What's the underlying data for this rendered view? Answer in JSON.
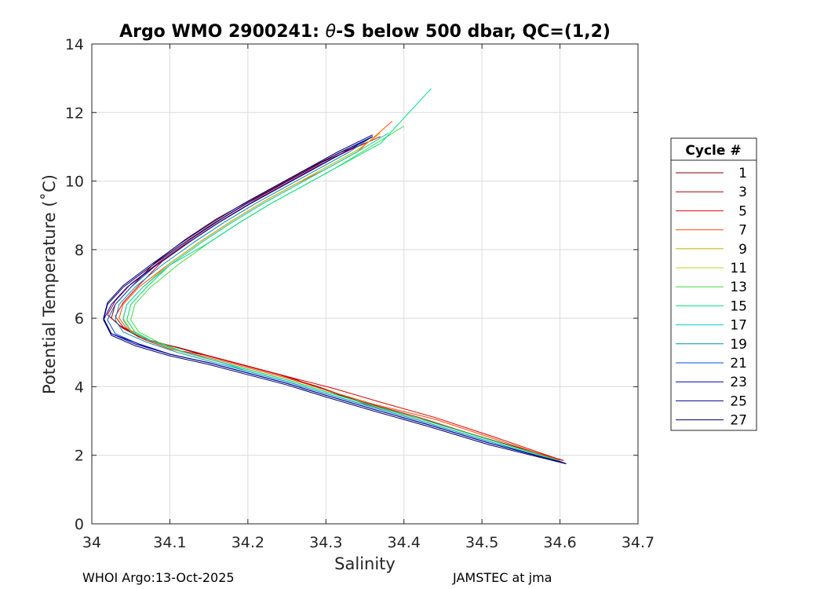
{
  "chart_data": {
    "type": "line",
    "title_prefix": "Argo WMO 2900241: ",
    "title_theta": "θ",
    "title_suffix": "-S below 500 dbar,  QC=(1,2)",
    "xlabel": "Salinity",
    "ylabel": "Potential Temperature (˚C)",
    "xlim": [
      34.0,
      34.7
    ],
    "ylim": [
      0,
      14
    ],
    "xticks": [
      "34",
      "34.1",
      "34.2",
      "34.3",
      "34.4",
      "34.5",
      "34.6",
      "34.7"
    ],
    "yticks": [
      "0",
      "2",
      "4",
      "6",
      "8",
      "10",
      "12",
      "14"
    ],
    "grid": true,
    "legend_title": "Cycle #",
    "legend_position": "right",
    "series": [
      {
        "name": "1",
        "color": "#800000",
        "x": [
          34.605,
          34.52,
          34.43,
          34.35,
          34.3,
          34.25,
          34.2,
          34.15,
          34.11,
          34.07,
          34.04,
          34.025,
          34.03,
          34.05,
          34.08,
          34.12,
          34.16,
          34.2,
          34.24,
          34.28,
          34.32,
          34.35
        ],
        "y": [
          1.85,
          2.4,
          3.0,
          3.5,
          3.9,
          4.3,
          4.6,
          4.9,
          5.15,
          5.35,
          5.7,
          6.0,
          6.4,
          6.9,
          7.6,
          8.3,
          8.9,
          9.4,
          9.9,
          10.4,
          10.85,
          11.1
        ]
      },
      {
        "name": "3",
        "color": "#b00000",
        "x": [
          34.6,
          34.51,
          34.42,
          34.34,
          34.29,
          34.24,
          34.19,
          34.14,
          34.1,
          34.06,
          34.035,
          34.02,
          34.03,
          34.05,
          34.09,
          34.13,
          34.17,
          34.21,
          34.25,
          34.29,
          34.33,
          34.36
        ],
        "y": [
          1.85,
          2.45,
          3.1,
          3.6,
          4.0,
          4.35,
          4.65,
          4.95,
          5.2,
          5.45,
          5.8,
          6.1,
          6.5,
          7.0,
          7.7,
          8.35,
          8.95,
          9.5,
          10.0,
          10.5,
          10.9,
          11.2
        ]
      },
      {
        "name": "5",
        "color": "#e00000",
        "x": [
          34.603,
          34.52,
          34.44,
          34.37,
          34.31,
          34.25,
          34.2,
          34.15,
          34.1,
          34.065,
          34.04,
          34.03,
          34.04,
          34.06,
          34.09,
          34.13,
          34.17,
          34.21,
          34.25,
          34.29,
          34.33,
          34.37
        ],
        "y": [
          1.85,
          2.5,
          3.1,
          3.55,
          3.95,
          4.3,
          4.6,
          4.9,
          5.1,
          5.4,
          5.75,
          6.05,
          6.45,
          6.95,
          7.65,
          8.3,
          8.9,
          9.45,
          9.95,
          10.45,
          10.9,
          11.3
        ]
      },
      {
        "name": "7",
        "color": "#ff5000",
        "x": [
          34.6,
          34.52,
          34.44,
          34.36,
          34.3,
          34.25,
          34.2,
          34.15,
          34.1,
          34.07,
          34.045,
          34.035,
          34.04,
          34.06,
          34.1,
          34.14,
          34.18,
          34.22,
          34.26,
          34.3,
          34.34,
          34.385
        ],
        "y": [
          1.85,
          2.45,
          3.05,
          3.5,
          3.9,
          4.25,
          4.55,
          4.85,
          5.1,
          5.35,
          5.7,
          6.0,
          6.4,
          6.9,
          7.6,
          8.25,
          8.85,
          9.4,
          9.9,
          10.35,
          10.85,
          11.75
        ]
      },
      {
        "name": "9",
        "color": "#d0b000",
        "x": [
          34.598,
          34.51,
          34.43,
          34.36,
          34.3,
          34.25,
          34.2,
          34.15,
          34.11,
          34.075,
          34.05,
          34.04,
          34.045,
          34.065,
          34.1,
          34.14,
          34.18,
          34.22,
          34.26,
          34.3,
          34.34,
          34.37
        ],
        "y": [
          1.85,
          2.45,
          3.0,
          3.45,
          3.85,
          4.2,
          4.5,
          4.8,
          5.05,
          5.35,
          5.65,
          6.0,
          6.4,
          6.9,
          7.6,
          8.25,
          8.85,
          9.4,
          9.9,
          10.4,
          10.9,
          11.4
        ]
      },
      {
        "name": "11",
        "color": "#b0e020",
        "x": [
          34.598,
          34.51,
          34.43,
          34.36,
          34.3,
          34.25,
          34.2,
          34.16,
          34.12,
          34.08,
          34.055,
          34.045,
          34.05,
          34.07,
          34.1,
          34.14,
          34.18,
          34.22,
          34.26,
          34.3,
          34.34,
          34.38
        ],
        "y": [
          1.85,
          2.45,
          3.0,
          3.45,
          3.85,
          4.2,
          4.5,
          4.75,
          5.0,
          5.3,
          5.6,
          5.95,
          6.4,
          6.9,
          7.55,
          8.2,
          8.8,
          9.35,
          9.85,
          10.35,
          10.85,
          11.4
        ]
      },
      {
        "name": "13",
        "color": "#40e040",
        "x": [
          34.598,
          34.51,
          34.43,
          34.36,
          34.3,
          34.25,
          34.2,
          34.16,
          34.12,
          34.085,
          34.06,
          34.05,
          34.055,
          34.075,
          34.11,
          34.15,
          34.19,
          34.23,
          34.27,
          34.31,
          34.35,
          34.4
        ],
        "y": [
          1.85,
          2.45,
          3.0,
          3.45,
          3.85,
          4.2,
          4.5,
          4.75,
          5.0,
          5.3,
          5.6,
          5.95,
          6.4,
          6.9,
          7.55,
          8.2,
          8.8,
          9.35,
          9.85,
          10.35,
          10.9,
          11.6
        ]
      },
      {
        "name": "15",
        "color": "#00e080",
        "x": [
          34.598,
          34.51,
          34.43,
          34.36,
          34.3,
          34.25,
          34.2,
          34.16,
          34.12,
          34.08,
          34.055,
          34.045,
          34.05,
          34.07,
          34.1,
          34.15,
          34.19,
          34.23,
          34.27,
          34.31,
          34.37,
          34.435
        ],
        "y": [
          1.85,
          2.45,
          3.0,
          3.45,
          3.85,
          4.2,
          4.5,
          4.75,
          5.0,
          5.3,
          5.6,
          5.95,
          6.4,
          6.9,
          7.55,
          8.2,
          8.8,
          9.35,
          9.85,
          10.35,
          11.1,
          12.7
        ]
      },
      {
        "name": "17",
        "color": "#00d0d0",
        "x": [
          34.6,
          34.51,
          34.43,
          34.36,
          34.3,
          34.25,
          34.2,
          34.16,
          34.12,
          34.08,
          34.05,
          34.04,
          34.045,
          34.065,
          34.1,
          34.14,
          34.18,
          34.22,
          34.26,
          34.3,
          34.34,
          34.38
        ],
        "y": [
          1.8,
          2.4,
          2.95,
          3.4,
          3.8,
          4.15,
          4.45,
          4.75,
          5.0,
          5.3,
          5.6,
          5.95,
          6.4,
          6.9,
          7.55,
          8.2,
          8.8,
          9.35,
          9.85,
          10.35,
          10.85,
          11.4
        ]
      },
      {
        "name": "19",
        "color": "#0090c0",
        "x": [
          34.601,
          34.51,
          34.43,
          34.36,
          34.3,
          34.25,
          34.2,
          34.15,
          34.11,
          34.07,
          34.04,
          34.03,
          34.035,
          34.055,
          34.09,
          34.13,
          34.17,
          34.21,
          34.25,
          34.29,
          34.33,
          34.36
        ],
        "y": [
          1.8,
          2.4,
          2.95,
          3.4,
          3.8,
          4.15,
          4.45,
          4.75,
          5.0,
          5.3,
          5.6,
          5.95,
          6.4,
          6.9,
          7.55,
          8.2,
          8.8,
          9.35,
          9.85,
          10.35,
          10.85,
          11.3
        ]
      },
      {
        "name": "21",
        "color": "#0050e0",
        "x": [
          34.603,
          34.51,
          34.43,
          34.36,
          34.3,
          34.25,
          34.2,
          34.15,
          34.1,
          34.06,
          34.03,
          34.02,
          34.03,
          34.05,
          34.08,
          34.12,
          34.16,
          34.2,
          34.24,
          34.28,
          34.32,
          34.36
        ],
        "y": [
          1.8,
          2.35,
          2.9,
          3.35,
          3.75,
          4.1,
          4.4,
          4.7,
          4.95,
          5.25,
          5.55,
          5.95,
          6.4,
          6.9,
          7.5,
          8.15,
          8.75,
          9.3,
          9.8,
          10.3,
          10.8,
          11.3
        ]
      },
      {
        "name": "23",
        "color": "#0000c0",
        "x": [
          34.605,
          34.51,
          34.43,
          34.36,
          34.3,
          34.25,
          34.2,
          34.15,
          34.1,
          34.06,
          34.025,
          34.015,
          34.025,
          34.045,
          34.08,
          34.12,
          34.16,
          34.2,
          34.24,
          34.28,
          34.32,
          34.36
        ],
        "y": [
          1.78,
          2.35,
          2.9,
          3.35,
          3.75,
          4.1,
          4.4,
          4.7,
          4.95,
          5.25,
          5.55,
          5.95,
          6.4,
          6.9,
          7.5,
          8.15,
          8.75,
          9.3,
          9.8,
          10.3,
          10.8,
          11.3
        ]
      },
      {
        "name": "25",
        "color": "#000090",
        "x": [
          34.607,
          34.51,
          34.43,
          34.36,
          34.3,
          34.25,
          34.2,
          34.15,
          34.1,
          34.055,
          34.025,
          34.015,
          34.02,
          34.04,
          34.075,
          34.115,
          34.155,
          34.195,
          34.235,
          34.275,
          34.315,
          34.36
        ],
        "y": [
          1.77,
          2.35,
          2.9,
          3.35,
          3.75,
          4.1,
          4.4,
          4.7,
          4.95,
          5.25,
          5.55,
          6.0,
          6.45,
          6.95,
          7.55,
          8.2,
          8.8,
          9.35,
          9.85,
          10.35,
          10.85,
          11.35
        ]
      },
      {
        "name": "27",
        "color": "#000060",
        "x": [
          34.608,
          34.51,
          34.43,
          34.36,
          34.3,
          34.25,
          34.2,
          34.15,
          34.1,
          34.055,
          34.025,
          34.015,
          34.02,
          34.04,
          34.075,
          34.115,
          34.155,
          34.195,
          34.235,
          34.275,
          34.315,
          34.36
        ],
        "y": [
          1.75,
          2.3,
          2.85,
          3.3,
          3.7,
          4.05,
          4.35,
          4.65,
          4.9,
          5.2,
          5.5,
          5.95,
          6.4,
          6.9,
          7.5,
          8.15,
          8.75,
          9.3,
          9.8,
          10.3,
          10.8,
          11.3
        ]
      }
    ]
  },
  "footer": {
    "left": "WHOI Argo:13-Oct-2025",
    "right": "JAMSTEC at jma"
  }
}
